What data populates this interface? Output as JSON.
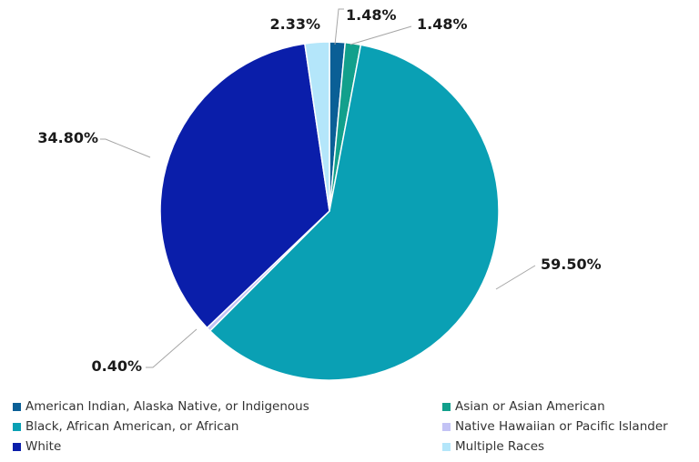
{
  "chart_data": {
    "type": "pie",
    "title": "",
    "slices": [
      {
        "name": "American Indian, Alaska Native, or Indigenous",
        "value": 1.48,
        "label": "1.48%",
        "color": "#0a5f96"
      },
      {
        "name": "Asian or Asian American",
        "value": 1.48,
        "label": "1.48%",
        "color": "#12a08c"
      },
      {
        "name": "Black, African American, or African",
        "value": 59.5,
        "label": "59.50%",
        "color": "#0aa0b4"
      },
      {
        "name": "Native Hawaiian or Pacific Islander",
        "value": 0.4,
        "label": "0.40%",
        "color": "#c3c3f5"
      },
      {
        "name": "White",
        "value": 34.8,
        "label": "34.80%",
        "color": "#0a1eaa"
      },
      {
        "name": "Multiple Races",
        "value": 2.33,
        "label": "2.33%",
        "color": "#b4e6fa"
      }
    ],
    "legend_position": "bottom"
  }
}
